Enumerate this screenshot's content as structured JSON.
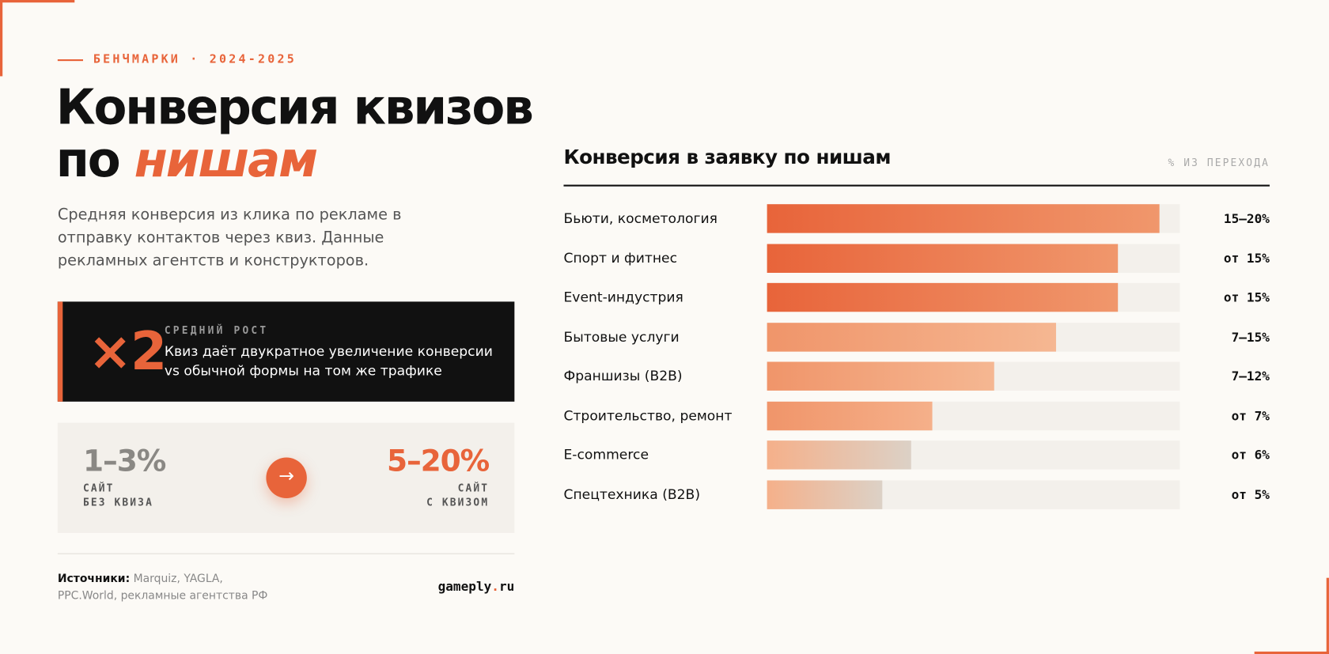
{
  "header": {
    "eyebrow": "БЕНЧМАРКИ · 2024-2025",
    "title_line1": "Конверсия квизов",
    "title_line2_plain": "по",
    "title_line2_accent": "нишам",
    "description": "Средняя конверсия из клика по рекламе в отправку контактов через квиз. Данные рекламных агентств и конструкторов."
  },
  "highlight": {
    "big": "×2",
    "label": "СРЕДНИЙ РОСТ",
    "text": "Квиз даёт двукратное увеличение конверсии vs обычной формы на том же трафике"
  },
  "comparison": {
    "before_value": "1–3%",
    "before_line1": "САЙТ",
    "before_line2": "БЕЗ КВИЗА",
    "arrow": "→",
    "after_value": "5–20%",
    "after_line1": "САЙТ",
    "after_line2": "С КВИЗОМ"
  },
  "footer": {
    "sources_label": "Источники:",
    "sources": "Marquiz, YAGLA, PPC.World, рекламные агентства РФ",
    "brand_name": "gameply",
    "brand_dot": ".",
    "brand_tld": "ru"
  },
  "chart": {
    "title": "Конверсия в заявку по нишам",
    "unit_note": "% ИЗ ПЕРЕХОДА",
    "track_max": 100,
    "rows": [
      {
        "label": "Бьюти, косметология",
        "value_label": "15–20%",
        "fill": 95,
        "colors": [
          "#e8643a",
          "#f0976c"
        ]
      },
      {
        "label": "Спорт и фитнес",
        "value_label": "от 15%",
        "fill": 85,
        "colors": [
          "#e8643a",
          "#f0976c"
        ]
      },
      {
        "label": "Event-индустрия",
        "value_label": "от 15%",
        "fill": 85,
        "colors": [
          "#e8643a",
          "#f0976c"
        ]
      },
      {
        "label": "Бытовые услуги",
        "value_label": "7–15%",
        "fill": 70,
        "colors": [
          "#f0956a",
          "#f5b792"
        ]
      },
      {
        "label": "Франшизы (B2B)",
        "value_label": "7–12%",
        "fill": 55,
        "colors": [
          "#f0956a",
          "#f5b792"
        ]
      },
      {
        "label": "Строительство, ремонт",
        "value_label": "от 7%",
        "fill": 40,
        "colors": [
          "#f0956a",
          "#f5b08a"
        ]
      },
      {
        "label": "E-commerce",
        "value_label": "от 6%",
        "fill": 35,
        "colors": [
          "#f5b08a",
          "#dcd1c6"
        ]
      },
      {
        "label": "Спецтехника (B2B)",
        "value_label": "от 5%",
        "fill": 28,
        "colors": [
          "#f5b08a",
          "#dcd1c6"
        ]
      }
    ]
  }
}
